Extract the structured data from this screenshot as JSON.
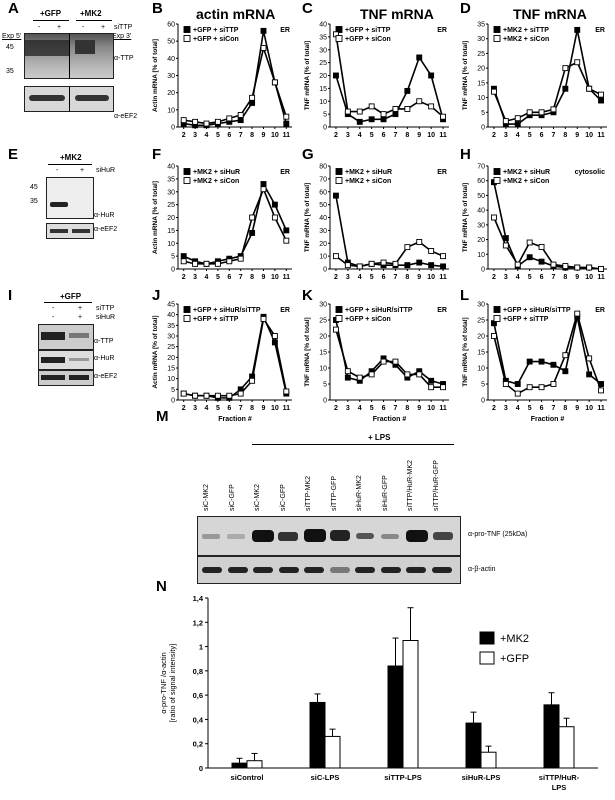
{
  "panels": {
    "A": {
      "label": "A",
      "top_groups": [
        "+GFP",
        "+MK2"
      ],
      "sittp_label": "siTTP",
      "sittp_signs": [
        "-",
        "+",
        "-",
        "+"
      ],
      "exp_left": "Exp 5'",
      "exp_right": "Exp 3'",
      "mw": [
        "45",
        "35"
      ],
      "antibody1": "α-TTP",
      "antibody2": "α-eEF2"
    },
    "E": {
      "label": "E",
      "group": "+MK2",
      "sihur_label": "siHuR",
      "signs": [
        "-",
        "+"
      ],
      "mw": [
        "45",
        "35"
      ],
      "antibody1": "α-HuR",
      "antibody2": "α-eEF2"
    },
    "I": {
      "label": "I",
      "group": "+GFP",
      "row1_label": "siTTP",
      "row1_signs": [
        "-",
        "+"
      ],
      "row2_label": "siHuR",
      "row2_signs": [
        "-",
        "+"
      ],
      "antibody1": "α-TTP",
      "antibody2": "α-HuR",
      "antibody3": "α-eEF2"
    },
    "M": {
      "label": "M",
      "lps": "+ LPS",
      "lanes": [
        "siC-MK2",
        "siC-GFP",
        "siC-MK2",
        "siC-GFP",
        "siTTP-MK2",
        "siTTP-GFP",
        "siHuR-MK2",
        "siHuR-GFP",
        "siTTP/HuR-MK2",
        "siTTP/HuR-GFP"
      ],
      "antibody1": "α-pro-TNF (25kDa)",
      "antibody2": "α-β-actin"
    }
  },
  "titles": {
    "B": "actin mRNA",
    "C": "TNF mRNA",
    "D": "TNF mRNA"
  },
  "chart_data": [
    {
      "id": "B",
      "type": "line",
      "ylabel": "Actin mRNA [% of total]",
      "corner": "ER",
      "ylim": [
        0,
        60
      ],
      "yticks": [
        0,
        10,
        20,
        30,
        40,
        50,
        60
      ],
      "x": [
        2,
        3,
        4,
        5,
        6,
        7,
        8,
        9,
        10,
        11
      ],
      "series": [
        {
          "name": "+GFP + siTTP",
          "marker": "filled",
          "values": [
            2,
            1,
            1,
            2,
            3,
            4,
            14,
            56,
            26,
            2
          ]
        },
        {
          "name": "+GFP + siCon",
          "marker": "open",
          "values": [
            4,
            3,
            2,
            3,
            5,
            7,
            17,
            46,
            26,
            6
          ]
        }
      ]
    },
    {
      "id": "C",
      "type": "line",
      "ylabel": "TNF mRNA [% of total]",
      "corner": "ER",
      "ylim": [
        0,
        40
      ],
      "yticks": [
        0,
        5,
        10,
        15,
        20,
        25,
        30,
        35,
        40
      ],
      "x": [
        2,
        3,
        4,
        5,
        6,
        7,
        8,
        9,
        10,
        11
      ],
      "series": [
        {
          "name": "+GFP + siTTP",
          "marker": "filled",
          "values": [
            20,
            5,
            2,
            3,
            3,
            5,
            14,
            27,
            20,
            3
          ]
        },
        {
          "name": "+GFP + siCon",
          "marker": "open",
          "values": [
            36,
            6,
            6,
            8,
            5,
            7,
            7,
            10,
            8,
            4
          ]
        }
      ]
    },
    {
      "id": "D",
      "type": "line",
      "ylabel": "TNF mRNA [% of total]",
      "corner": "ER",
      "ylim": [
        0,
        35
      ],
      "yticks": [
        0,
        5,
        10,
        15,
        20,
        25,
        30,
        35
      ],
      "x": [
        2,
        3,
        4,
        5,
        6,
        7,
        8,
        9,
        10,
        11
      ],
      "series": [
        {
          "name": "+MK2 + siTTP",
          "marker": "filled",
          "values": [
            13,
            1,
            1,
            4,
            4,
            5,
            13,
            33,
            13,
            9
          ]
        },
        {
          "name": "+MK2 + siCon",
          "marker": "open",
          "values": [
            12,
            2,
            3,
            5,
            5,
            6,
            20,
            22,
            13,
            11
          ]
        }
      ]
    },
    {
      "id": "F",
      "type": "line",
      "ylabel": "Actin mRNA [% of total]",
      "corner": "ER",
      "ylim": [
        0,
        40
      ],
      "yticks": [
        0,
        5,
        10,
        15,
        20,
        25,
        30,
        35,
        40
      ],
      "x": [
        2,
        3,
        4,
        5,
        6,
        7,
        8,
        9,
        10,
        11
      ],
      "series": [
        {
          "name": "+MK2 + siHuR",
          "marker": "filled",
          "values": [
            5,
            3,
            2,
            3,
            4,
            5,
            14,
            33,
            25,
            15
          ]
        },
        {
          "name": "+MK2 + siCon",
          "marker": "open",
          "values": [
            3,
            2,
            2,
            2,
            3,
            4,
            20,
            31,
            20,
            11
          ]
        }
      ]
    },
    {
      "id": "G",
      "type": "line",
      "ylabel": "TNF mRNA [% of total]",
      "corner": "ER",
      "ylim": [
        0,
        80
      ],
      "yticks": [
        0,
        10,
        20,
        30,
        40,
        50,
        60,
        70,
        80
      ],
      "x": [
        2,
        3,
        4,
        5,
        6,
        7,
        8,
        9,
        10,
        11
      ],
      "series": [
        {
          "name": "+MK2 + siHuR",
          "marker": "filled",
          "values": [
            57,
            5,
            2,
            4,
            3,
            3,
            3,
            5,
            3,
            2
          ]
        },
        {
          "name": "+MK2 + siCon",
          "marker": "open",
          "values": [
            10,
            3,
            2,
            4,
            5,
            4,
            17,
            21,
            14,
            10
          ]
        }
      ]
    },
    {
      "id": "H",
      "type": "line",
      "ylabel": "TNF mRNA [% of total]",
      "corner": "cytosolic",
      "ylim": [
        0,
        70
      ],
      "yticks": [
        0,
        10,
        20,
        30,
        40,
        50,
        60,
        70
      ],
      "x": [
        2,
        3,
        4,
        5,
        6,
        7,
        8,
        9,
        10,
        11
      ],
      "series": [
        {
          "name": "+MK2 + siHuR",
          "marker": "filled",
          "values": [
            59,
            21,
            2,
            8,
            5,
            2,
            1,
            1,
            1,
            0
          ]
        },
        {
          "name": "+MK2 + siCon",
          "marker": "open",
          "values": [
            35,
            16,
            3,
            18,
            15,
            3,
            2,
            1,
            1,
            0
          ]
        }
      ]
    },
    {
      "id": "J",
      "type": "line",
      "ylabel": "Actin mRNA [% of total]",
      "xlabel": "Fraction #",
      "corner": "ER",
      "ylim": [
        0,
        45
      ],
      "yticks": [
        0,
        5,
        10,
        15,
        20,
        25,
        30,
        35,
        40,
        45
      ],
      "x": [
        2,
        3,
        4,
        5,
        6,
        7,
        8,
        9,
        10,
        11
      ],
      "series": [
        {
          "name": "+GFP + siHuR/siTTP",
          "marker": "filled",
          "values": [
            3,
            2,
            2,
            1,
            1,
            5,
            11,
            39,
            27,
            3
          ]
        },
        {
          "name": "+GFP + siTTP",
          "marker": "open",
          "values": [
            3,
            2,
            2,
            2,
            2,
            3,
            9,
            38,
            30,
            4
          ]
        }
      ]
    },
    {
      "id": "K",
      "type": "line",
      "ylabel": "TNF mRNA [% of total]",
      "xlabel": "Fraction #",
      "corner": "ER",
      "ylim": [
        0,
        30
      ],
      "yticks": [
        0,
        5,
        10,
        15,
        20,
        25,
        30
      ],
      "x": [
        2,
        3,
        4,
        5,
        6,
        7,
        8,
        9,
        10,
        11
      ],
      "series": [
        {
          "name": "+GFP + siHuR/siTTP",
          "marker": "filled",
          "values": [
            25,
            7,
            6,
            9,
            13,
            11,
            7,
            9,
            6,
            5
          ]
        },
        {
          "name": "+GFP + siCon",
          "marker": "open",
          "values": [
            22,
            9,
            7,
            8,
            12,
            12,
            8,
            8,
            4,
            4
          ]
        }
      ]
    },
    {
      "id": "L",
      "type": "line",
      "ylabel": "TNF mRNA [% of total]",
      "xlabel": "Fraction #",
      "corner": "ER",
      "ylim": [
        0,
        30
      ],
      "yticks": [
        0,
        5,
        10,
        15,
        20,
        25,
        30
      ],
      "x": [
        2,
        3,
        4,
        5,
        6,
        7,
        8,
        9,
        10,
        11
      ],
      "series": [
        {
          "name": "+GFP + siHuR/siTTP",
          "marker": "filled",
          "values": [
            24,
            6,
            5,
            12,
            12,
            11,
            9,
            26,
            8,
            5
          ]
        },
        {
          "name": "+GFP + siTTP",
          "marker": "open",
          "values": [
            20,
            5,
            2,
            4,
            4,
            5,
            14,
            27,
            13,
            3
          ]
        }
      ]
    },
    {
      "id": "N",
      "type": "bar",
      "ylabel": "α-pro-TNF /α-actin\n[ratio of signal intensity]",
      "ylim": [
        0,
        1.4
      ],
      "yticks": [
        "0",
        "0,2",
        "0,4",
        "0,6",
        "0,8",
        "1",
        "1,2",
        "1,4"
      ],
      "categories": [
        "siControl",
        "siC-LPS",
        "siTTP-LPS",
        "siHuR-LPS",
        "siTTP/HuR-\nLPS"
      ],
      "series": [
        {
          "name": "+MK2",
          "color": "#000000",
          "values": [
            0.04,
            0.54,
            0.84,
            0.37,
            0.52
          ],
          "errors": [
            0.04,
            0.07,
            0.23,
            0.09,
            0.1
          ]
        },
        {
          "name": "+GFP",
          "color": "#ffffff",
          "values": [
            0.06,
            0.26,
            1.05,
            0.13,
            0.34
          ],
          "errors": [
            0.06,
            0.06,
            0.27,
            0.05,
            0.07
          ]
        }
      ]
    }
  ]
}
